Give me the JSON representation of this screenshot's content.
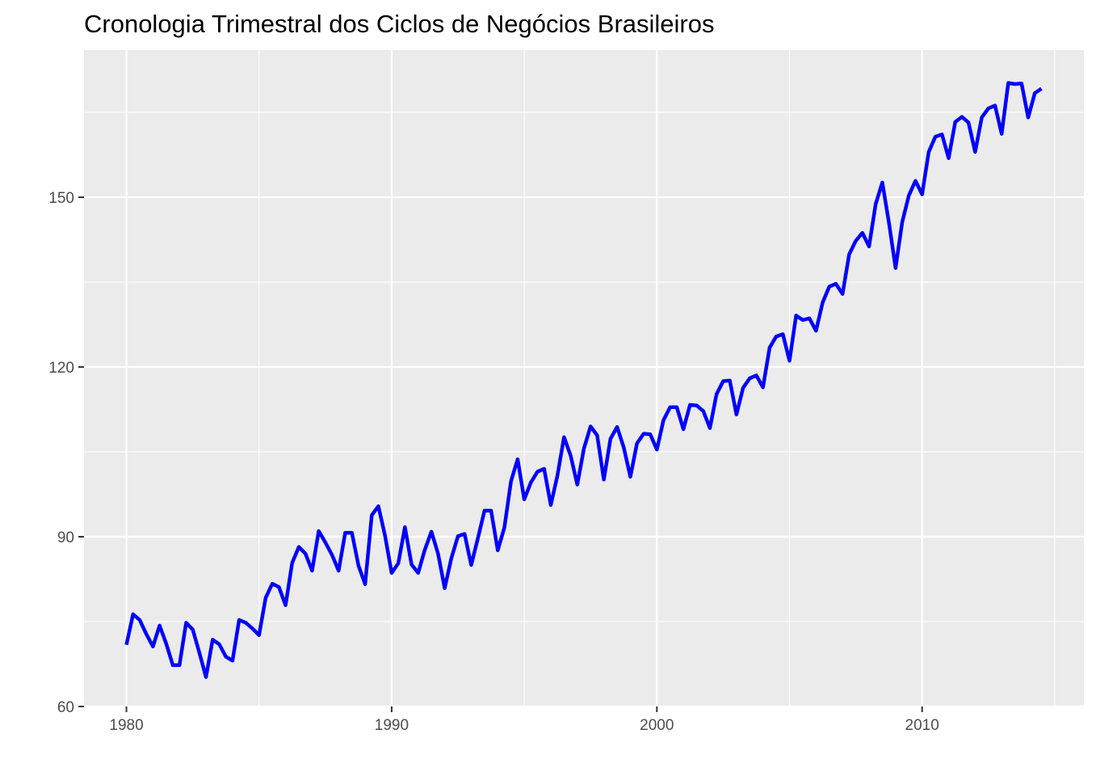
{
  "chart_data": {
    "type": "line",
    "title": "Cronologia Trimestral dos Ciclos de Negócios Brasileiros",
    "subtitle": "",
    "xlabel": "",
    "ylabel": "",
    "xlim": [
      1978.4,
      2016.1
    ],
    "ylim": [
      60,
      176
    ],
    "x_ticks": [
      1980,
      1990,
      2000,
      2010
    ],
    "y_ticks": [
      60,
      90,
      120,
      150
    ],
    "grid": true,
    "legend": "none",
    "colors": {
      "panel": "#EBEBEB",
      "grid": "#FFFFFF",
      "series": "#0000FF",
      "tick_text": "#4D4D4D",
      "tick_mark": "#333333"
    },
    "series": [
      {
        "name": "",
        "start_year": 1980,
        "frequency": "quarterly",
        "values": [
          70.9,
          76.3,
          75.3,
          72.8,
          70.6,
          74.3,
          71.1,
          67.3,
          67.3,
          74.8,
          73.6,
          69.5,
          65.2,
          71.8,
          71.0,
          68.8,
          68.1,
          75.3,
          74.8,
          73.8,
          72.6,
          79.2,
          81.7,
          81.1,
          77.9,
          85.4,
          88.2,
          87.0,
          84.0,
          91.0,
          89.0,
          86.8,
          84.0,
          90.7,
          90.7,
          84.9,
          81.6,
          93.8,
          95.4,
          90.2,
          83.6,
          85.3,
          91.7,
          85.1,
          83.6,
          87.7,
          90.9,
          87.0,
          80.9,
          86.2,
          90.1,
          90.5,
          85.0,
          89.7,
          94.6,
          94.6,
          87.6,
          91.6,
          99.8,
          103.7,
          96.6,
          99.6,
          101.5,
          102.0,
          95.6,
          100.8,
          107.6,
          104.3,
          99.2,
          105.6,
          109.5,
          107.9,
          100.1,
          107.3,
          109.4,
          105.8,
          100.6,
          106.5,
          108.2,
          108.1,
          105.4,
          110.6,
          112.9,
          112.9,
          109.0,
          113.3,
          113.2,
          112.2,
          109.2,
          115.2,
          117.5,
          117.6,
          111.6,
          116.3,
          118.0,
          118.5,
          116.4,
          123.4,
          125.4,
          125.8,
          121.1,
          129.1,
          128.3,
          128.6,
          126.4,
          131.4,
          134.2,
          134.7,
          132.9,
          139.9,
          142.3,
          143.7,
          141.3,
          148.8,
          152.6,
          145.5,
          137.5,
          145.6,
          150.3,
          152.9,
          150.5,
          158.0,
          160.7,
          161.1,
          156.9,
          163.3,
          164.2,
          163.2,
          158.0,
          164.1,
          165.7,
          166.2,
          161.2,
          170.2,
          170.0,
          170.1,
          164.1,
          168.4,
          169.2
        ]
      }
    ]
  }
}
